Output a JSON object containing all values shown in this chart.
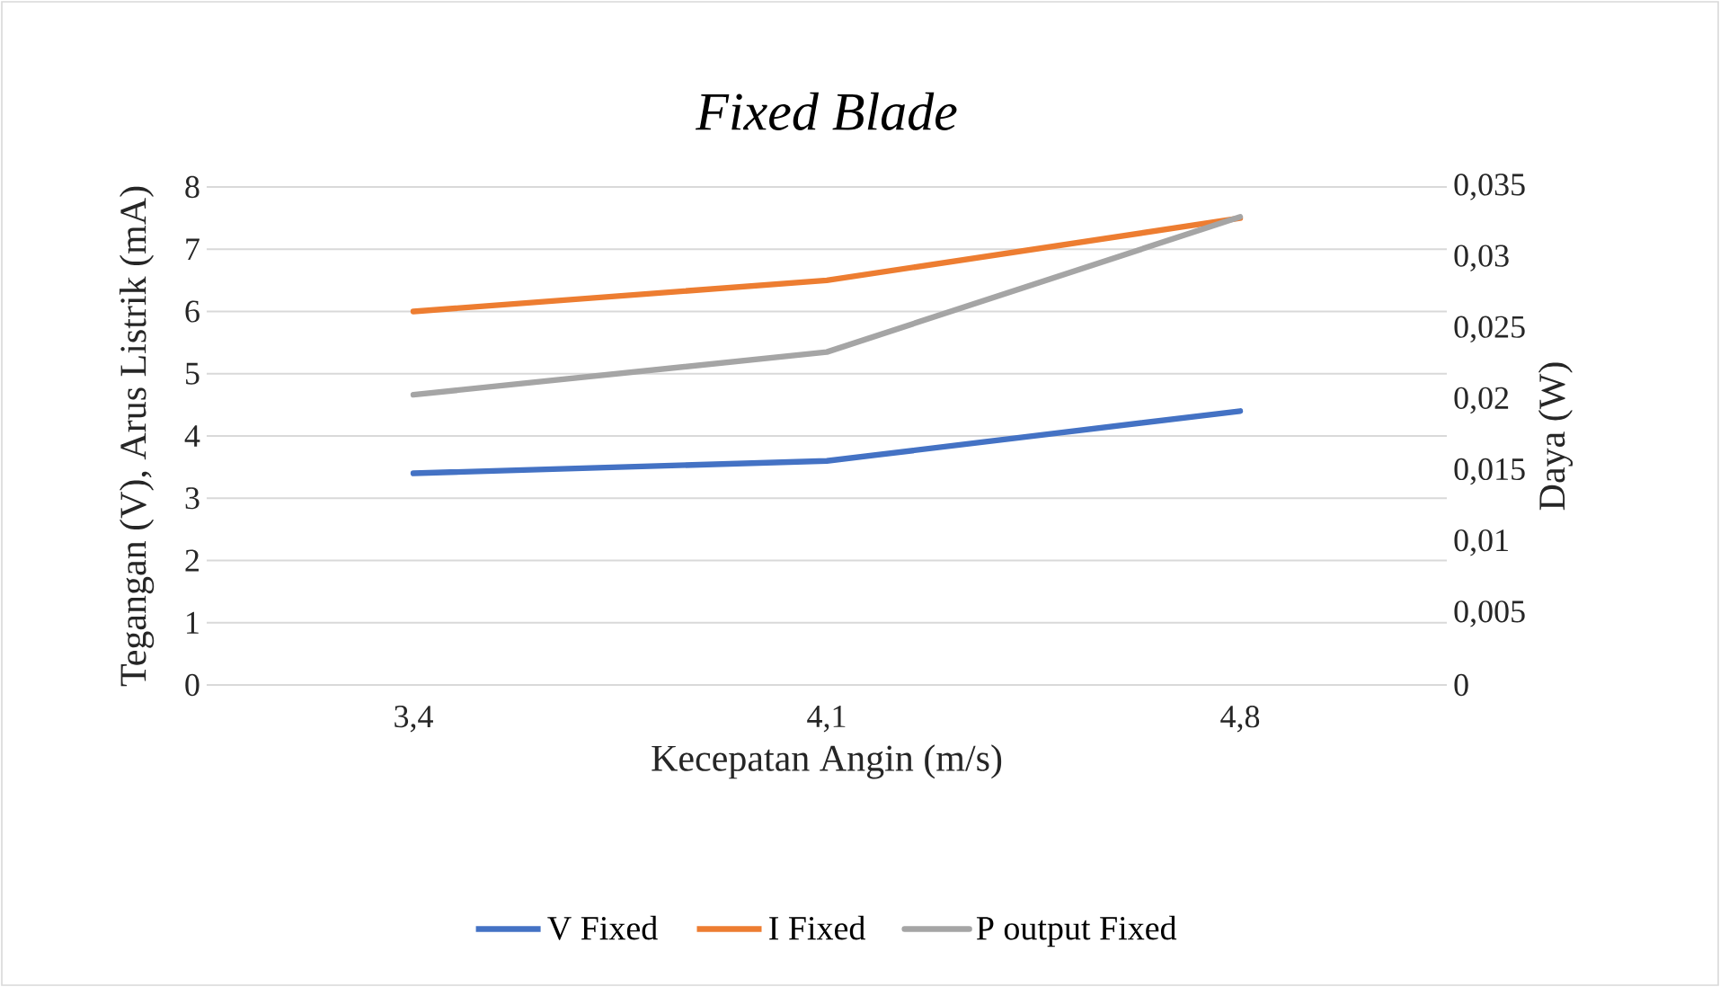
{
  "chart_data": {
    "type": "line",
    "title": "*Fixed Blade*",
    "xlabel": "Kecepatan Angin (m/s)",
    "ylabel": "Tegangan (V), Arus Listrik (mA)",
    "y2label": "Daya (W)",
    "categories": [
      "3,4",
      "4,1",
      "4,8"
    ],
    "series": [
      {
        "name": "V Fixed",
        "color": "#4472c4",
        "values": [
          3.4,
          3.6,
          4.4
        ]
      },
      {
        "name": "I Fixed",
        "color": "#ed7d31",
        "values": [
          6.0,
          6.5,
          7.5
        ]
      },
      {
        "name": "P output Fixed",
        "color": "#a5a5a5",
        "values": [
          0.0204,
          0.0234,
          0.0329
        ],
        "axis": "y2"
      }
    ],
    "ylim": [
      0,
      8
    ],
    "yticks": [
      0,
      1,
      2,
      3,
      4,
      5,
      6,
      7,
      8
    ],
    "y2lim": [
      0,
      0.035
    ],
    "y2ticks": [
      {
        "value": 0,
        "label": "0"
      },
      {
        "value": 0.005,
        "label": "0,005"
      },
      {
        "value": 0.01,
        "label": "0,01"
      },
      {
        "value": 0.015,
        "label": "0,015"
      },
      {
        "value": 0.02,
        "label": "0,02"
      },
      {
        "value": 0.025,
        "label": "0,025"
      },
      {
        "value": 0.03,
        "label": "0,03"
      },
      {
        "value": 0.035,
        "label": "0,035"
      }
    ],
    "grid": "y",
    "legend": "bottom",
    "marker": "none",
    "line_style": "solid"
  }
}
